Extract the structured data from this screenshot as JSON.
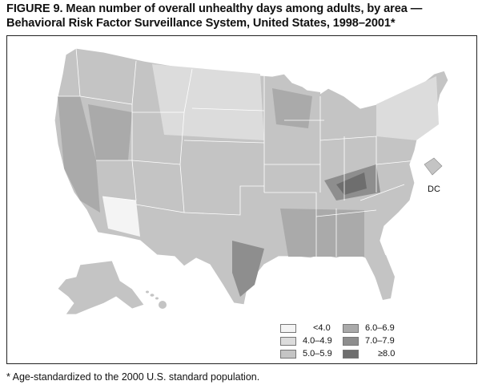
{
  "figure": {
    "title_line1": "FIGURE 9. Mean number of overall unhealthy days among adults, by area —",
    "title_line2": "Behavioral Risk Factor Surveillance System, United States, 1998–2001*",
    "footnote": "* Age-standardized to the 2000 U.S. standard population.",
    "dc_label": "DC"
  },
  "legend": {
    "items": [
      {
        "label": "<4.0",
        "color": "#f4f4f4"
      },
      {
        "label": "4.0–4.9",
        "color": "#dcdcdc"
      },
      {
        "label": "5.0–5.9",
        "color": "#c4c4c4"
      },
      {
        "label": "6.0–6.9",
        "color": "#aaaaaa"
      },
      {
        "label": "7.0–7.9",
        "color": "#8e8e8e"
      },
      {
        "label": "≥8.0",
        "color": "#6e6e6e"
      }
    ]
  },
  "colors": {
    "outline": "#ffffff",
    "border": "#222222"
  }
}
